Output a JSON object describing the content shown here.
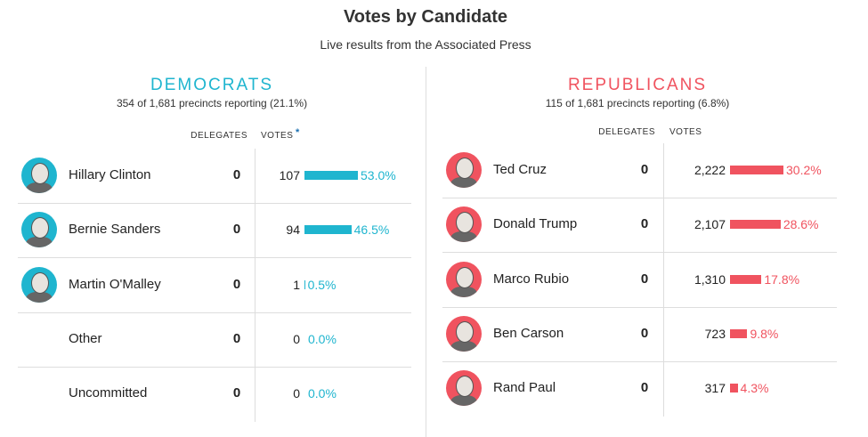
{
  "header": {
    "title": "Votes by Candidate",
    "subtitle": "Live results from the Associated Press"
  },
  "panels": [
    {
      "party": "DEMOCRATS",
      "reporting": "354 of 1,681 precincts reporting (21.1%)",
      "delegates_header": "DELEGATES",
      "votes_header": "VOTES",
      "votes_note": "*",
      "color": "#1fb5cf",
      "rows": [
        {
          "name": "Hillary Clinton",
          "delegates": "0",
          "votes": "107",
          "percent": {
            "value": 53.0,
            "label": "53.0%"
          }
        },
        {
          "name": "Bernie Sanders",
          "delegates": "0",
          "votes": "94",
          "percent": {
            "value": 46.5,
            "label": "46.5%"
          }
        },
        {
          "name": "Martin O'Malley",
          "delegates": "0",
          "votes": "1",
          "percent": {
            "value": 0.5,
            "label": "0.5%"
          }
        },
        {
          "name": "Other",
          "delegates": "0",
          "votes": "0",
          "percent": {
            "value": 0.0,
            "label": "0.0%"
          }
        },
        {
          "name": "Uncommitted",
          "delegates": "0",
          "votes": "0",
          "percent": {
            "value": 0.0,
            "label": "0.0%"
          }
        }
      ]
    },
    {
      "party": "REPUBLICANS",
      "reporting": "115 of 1,681 precincts reporting (6.8%)",
      "delegates_header": "DELEGATES",
      "votes_header": "VOTES",
      "color": "#f0535f",
      "rows": [
        {
          "name": "Ted Cruz",
          "delegates": "0",
          "votes": "2,222",
          "percent": {
            "value": 30.2,
            "label": "30.2%"
          }
        },
        {
          "name": "Donald Trump",
          "delegates": "0",
          "votes": "2,107",
          "percent": {
            "value": 28.6,
            "label": "28.6%"
          }
        },
        {
          "name": "Marco Rubio",
          "delegates": "0",
          "votes": "1,310",
          "percent": {
            "value": 17.8,
            "label": "17.8%"
          }
        },
        {
          "name": "Ben Carson",
          "delegates": "0",
          "votes": "723",
          "percent": {
            "value": 9.8,
            "label": "9.8%"
          }
        },
        {
          "name": "Rand Paul",
          "delegates": "0",
          "votes": "317",
          "percent": {
            "value": 4.3,
            "label": "4.3%"
          }
        }
      ]
    }
  ]
}
